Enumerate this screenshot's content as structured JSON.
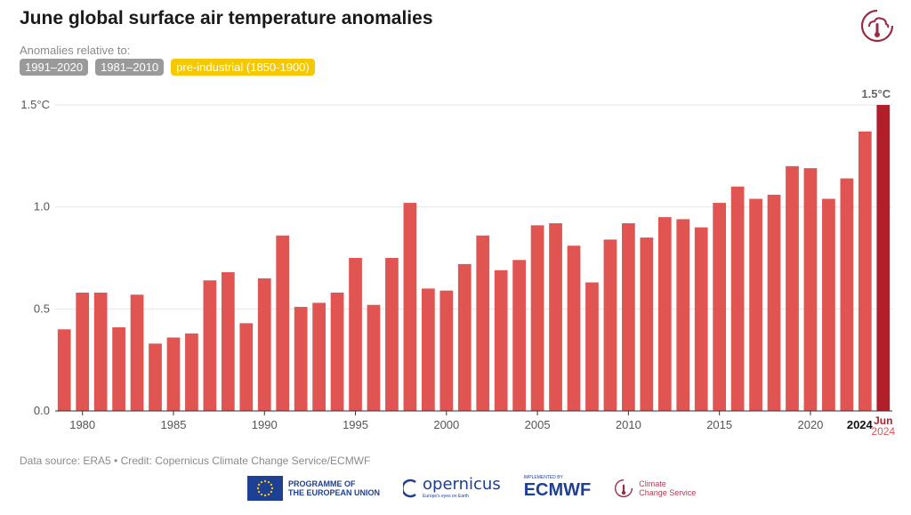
{
  "header": {
    "title": "June global surface air temperature anomalies",
    "subtitle": "Anomalies relative to:",
    "toggles": [
      {
        "label": "1991–2020",
        "active": false
      },
      {
        "label": "1981–2010",
        "active": false
      },
      {
        "label": "pre-industrial (1850-1900)",
        "active": true
      }
    ]
  },
  "chart_data": {
    "type": "bar",
    "title": "June global surface air temperature anomalies",
    "xlabel": "",
    "ylabel": "",
    "ylim": [
      0,
      1.5
    ],
    "yticks": [
      0.0,
      0.5,
      1.0,
      1.5
    ],
    "ytick_labels": [
      "0.0",
      "0.5",
      "1.0",
      "1.5°C"
    ],
    "xtick_years": [
      1980,
      1985,
      1990,
      1995,
      2000,
      2005,
      2010,
      2015,
      2020
    ],
    "xtick_labels": [
      "1980",
      "1985",
      "1990",
      "1995",
      "2000",
      "2005",
      "2010",
      "2015",
      "2020"
    ],
    "highlight_label_year": "2024",
    "highlight_label": "2024",
    "latest_label_line1": "Jun",
    "latest_label_line2": "2024",
    "latest_value_label": "1.5°C",
    "grid": true,
    "years": [
      1979,
      1980,
      1981,
      1982,
      1983,
      1984,
      1985,
      1986,
      1987,
      1988,
      1989,
      1990,
      1991,
      1992,
      1993,
      1994,
      1995,
      1996,
      1997,
      1998,
      1999,
      2000,
      2001,
      2002,
      2003,
      2004,
      2005,
      2006,
      2007,
      2008,
      2009,
      2010,
      2011,
      2012,
      2013,
      2014,
      2015,
      2016,
      2017,
      2018,
      2019,
      2020,
      2021,
      2022,
      2023,
      2024
    ],
    "values": [
      0.4,
      0.58,
      0.58,
      0.41,
      0.57,
      0.33,
      0.36,
      0.38,
      0.64,
      0.68,
      0.43,
      0.65,
      0.86,
      0.51,
      0.53,
      0.58,
      0.75,
      0.52,
      0.75,
      1.02,
      0.6,
      0.59,
      0.72,
      0.86,
      0.69,
      0.74,
      0.91,
      0.92,
      0.81,
      0.63,
      0.84,
      0.92,
      0.85,
      0.95,
      0.94,
      0.9,
      1.02,
      1.1,
      1.04,
      1.06,
      1.2,
      1.19,
      1.04,
      1.14,
      1.37,
      1.5
    ],
    "colors": {
      "bar": "#e05452",
      "latest": "#b11f2a",
      "grid": "#e6e6e6",
      "axis": "#333333"
    }
  },
  "footer": {
    "source": "Data source: ERA5 • Credit: Copernicus Climate Change Service/ECMWF",
    "logos": {
      "eu_line1": "PROGRAMME OF",
      "eu_line2": "THE EUROPEAN UNION",
      "copernicus": "opernicus",
      "copernicus_sub": "Europe's eyes on Earth",
      "ecmwf_top": "IMPLEMENTED BY",
      "ecmwf": "ECMWF",
      "ccs_line1": "Climate",
      "ccs_line2": "Change Service"
    }
  }
}
